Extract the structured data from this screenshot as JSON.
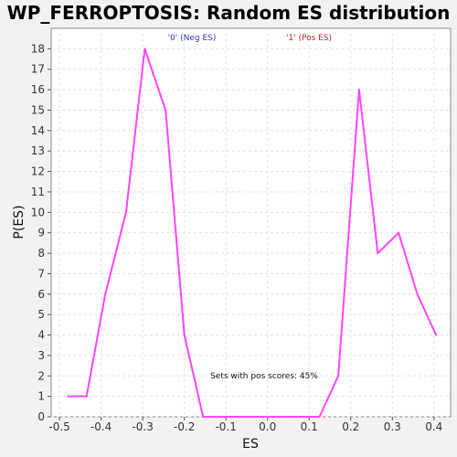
{
  "chart_data": {
    "type": "line",
    "title": "WP_FERROPTOSIS: Random ES distribution",
    "xlabel": "ES",
    "ylabel": "P(ES)",
    "xlim": [
      -0.52,
      0.44
    ],
    "ylim": [
      0,
      19
    ],
    "xticks": [
      "-0.5",
      "-0.4",
      "-0.3",
      "-0.2",
      "-0.1",
      "0.0",
      "0.1",
      "0.2",
      "0.3",
      "0.4"
    ],
    "yticks": [
      "0",
      "1",
      "2",
      "3",
      "4",
      "5",
      "6",
      "7",
      "8",
      "9",
      "10",
      "11",
      "12",
      "13",
      "14",
      "15",
      "16",
      "17",
      "18"
    ],
    "grid": true,
    "series": [
      {
        "color": "#ff44ff",
        "x": [
          -0.48,
          -0.435,
          -0.39,
          -0.34,
          -0.295,
          -0.245,
          -0.2,
          -0.155,
          -0.105,
          -0.06,
          -0.015,
          0.03,
          0.08,
          0.125,
          0.17,
          0.22,
          0.265,
          0.315,
          0.36,
          0.405
        ],
        "y": [
          1,
          1,
          6,
          10,
          18,
          15,
          4,
          0,
          0,
          0,
          0,
          0,
          0,
          0,
          2,
          16,
          8,
          9,
          6,
          4
        ]
      }
    ],
    "legend": [
      {
        "label": "'0' (Neg ES)",
        "color": "#3333cc"
      },
      {
        "label": "'1' (Pos ES)",
        "color": "#cc2222"
      }
    ],
    "annotation": "Sets with pos scores: 45%"
  }
}
